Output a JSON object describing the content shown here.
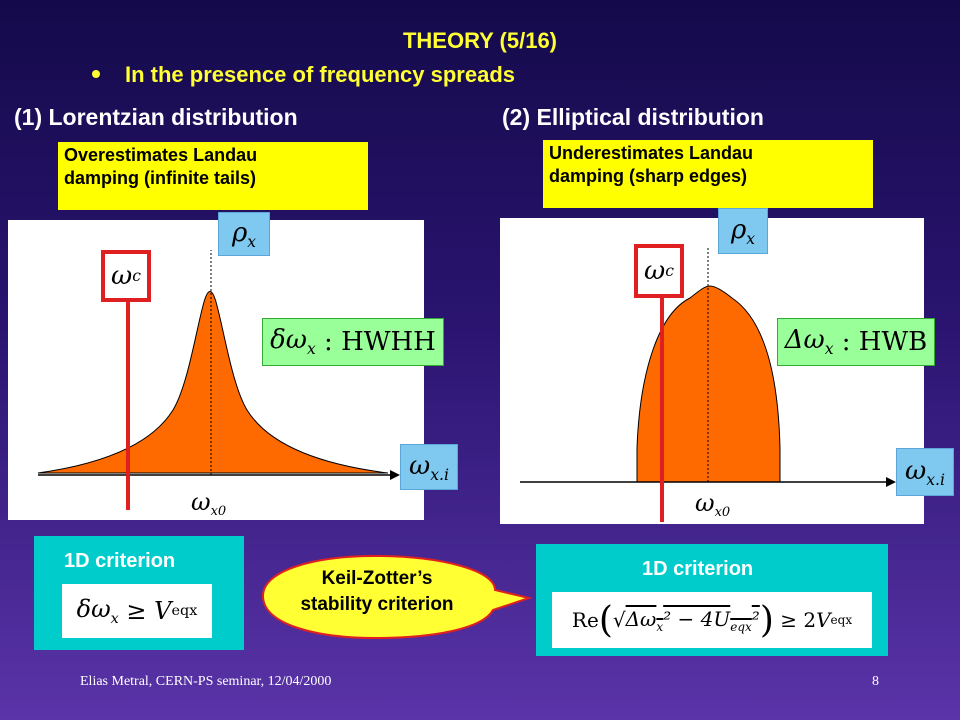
{
  "slide": {
    "title": "THEORY (5/16)",
    "bullet": "In the presence of frequency spreads",
    "footer_left": "Elias Metral, CERN-PS seminar, 12/04/2000",
    "page_number": "8"
  },
  "left": {
    "heading": "(1) Lorentzian distribution",
    "note_line1": "Overestimates Landau",
    "note_line2": "damping (infinite tails)",
    "criterion_title": "1D criterion"
  },
  "right": {
    "heading": "(2) Elliptical distribution",
    "note_line1": "Underestimates Landau",
    "note_line2": "damping (sharp edges)",
    "criterion_title": "1D criterion"
  },
  "callout": {
    "line1": "Keil-Zotter’s",
    "line2": "stability criterion"
  },
  "colors": {
    "fill": "#ff6a00",
    "marker": "#e02020",
    "callout": "#ffff33"
  }
}
